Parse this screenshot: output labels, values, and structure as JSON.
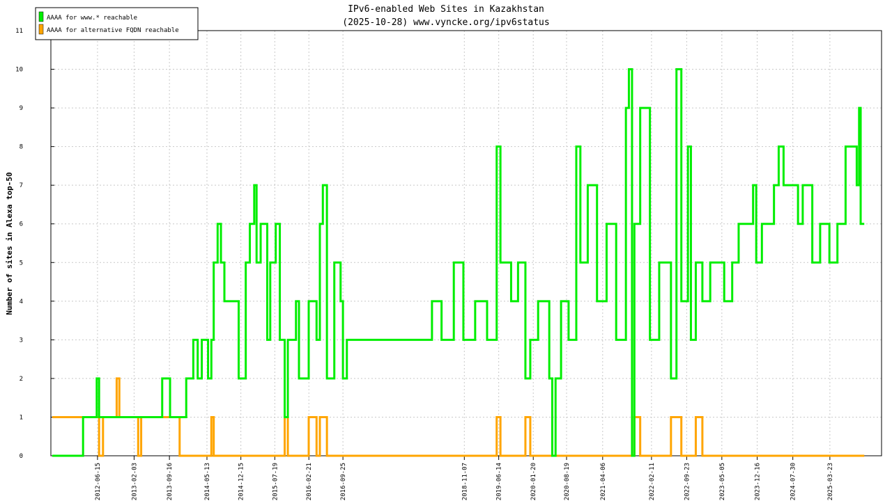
{
  "chart_data": {
    "type": "step",
    "title": "IPv6-enabled Web Sites in Kazakhstan",
    "subtitle": "(2025-10-28) www.vyncke.org/ipv6status",
    "y_label": "Number of sites in Alexa top-50",
    "xlim": [
      "2011-08-23",
      "2026-02-15"
    ],
    "xticks": [
      "2012-06-15",
      "2013-02-03",
      "2013-09-16",
      "2014-05-13",
      "2014-12-15",
      "2015-07-19",
      "2016-02-21",
      "2016-09-25",
      "2018-11-07",
      "2019-06-14",
      "2020-01-20",
      "2020-08-19",
      "2021-04-06",
      "2022-02-11",
      "2022-09-23",
      "2023-05-05",
      "2023-12-16",
      "2024-07-30",
      "2025-03-23"
    ],
    "ylim": [
      0,
      11
    ],
    "yticks": [
      0,
      1,
      2,
      3,
      4,
      5,
      6,
      7,
      8,
      9,
      10,
      11
    ],
    "grid": true,
    "legend": "top-left",
    "x": [
      "2011-09-01",
      "2012-03-15",
      "2012-06-10",
      "2012-06-25",
      "2012-07-20",
      "2012-10-15",
      "2012-11-01",
      "2013-03-01",
      "2013-03-20",
      "2013-05-01",
      "2013-08-01",
      "2013-09-20",
      "2013-11-20",
      "2014-01-01",
      "2014-02-15",
      "2014-03-15",
      "2014-04-10",
      "2014-05-20",
      "2014-06-10",
      "2014-06-25",
      "2014-07-20",
      "2014-08-10",
      "2014-09-01",
      "2014-12-01",
      "2015-01-15",
      "2015-02-10",
      "2015-03-10",
      "2015-03-25",
      "2015-04-20",
      "2015-06-01",
      "2015-06-20",
      "2015-07-25",
      "2015-08-20",
      "2015-09-20",
      "2015-10-10",
      "2015-12-01",
      "2015-12-20",
      "2016-02-20",
      "2016-04-10",
      "2016-05-01",
      "2016-05-20",
      "2016-06-15",
      "2016-08-01",
      "2016-09-10",
      "2016-09-25",
      "2016-10-20",
      "2018-04-15",
      "2018-06-15",
      "2018-09-01",
      "2018-11-01",
      "2019-01-15",
      "2019-04-01",
      "2019-06-01",
      "2019-06-25",
      "2019-09-01",
      "2019-10-15",
      "2019-12-01",
      "2020-01-01",
      "2020-02-20",
      "2020-05-01",
      "2020-05-20",
      "2020-06-10",
      "2020-07-15",
      "2020-09-01",
      "2020-10-20",
      "2020-11-15",
      "2021-01-01",
      "2021-03-01",
      "2021-05-01",
      "2021-07-01",
      "2021-09-01",
      "2021-09-20",
      "2021-10-10",
      "2021-10-25",
      "2021-12-01",
      "2022-02-01",
      "2022-04-01",
      "2022-06-15",
      "2022-07-20",
      "2022-08-20",
      "2022-10-01",
      "2022-10-20",
      "2022-11-20",
      "2023-01-01",
      "2023-02-20",
      "2023-05-20",
      "2023-07-10",
      "2023-08-20",
      "2023-11-20",
      "2023-12-10",
      "2024-01-15",
      "2024-04-01",
      "2024-05-01",
      "2024-06-01",
      "2024-09-01",
      "2024-10-01",
      "2024-12-01",
      "2025-01-20",
      "2025-03-20",
      "2025-05-10",
      "2025-07-01",
      "2025-09-10",
      "2025-09-25",
      "2025-10-05",
      "2025-10-28"
    ],
    "series": [
      {
        "name": "AAAA for www.* reachable",
        "color": "#00ee00",
        "values": [
          0,
          1,
          2,
          1,
          1,
          1,
          1,
          1,
          1,
          1,
          2,
          1,
          1,
          2,
          3,
          2,
          3,
          2,
          3,
          5,
          6,
          5,
          4,
          2,
          5,
          6,
          7,
          5,
          6,
          3,
          5,
          6,
          3,
          1,
          3,
          4,
          2,
          4,
          3,
          6,
          7,
          2,
          5,
          4,
          2,
          3,
          4,
          3,
          5,
          3,
          4,
          3,
          8,
          5,
          4,
          5,
          2,
          3,
          4,
          2,
          0,
          2,
          4,
          3,
          8,
          5,
          7,
          4,
          6,
          3,
          9,
          10,
          0,
          6,
          9,
          3,
          5,
          2,
          10,
          4,
          8,
          3,
          5,
          4,
          5,
          4,
          5,
          6,
          7,
          5,
          6,
          7,
          8,
          7,
          6,
          7,
          5,
          6,
          5,
          6,
          8,
          7,
          9,
          6,
          6
        ]
      },
      {
        "name": "AAAA for alternative FQDN reachable",
        "color": "#ffa500",
        "values": [
          1,
          1,
          1,
          0,
          1,
          2,
          1,
          0,
          1,
          1,
          1,
          1,
          0,
          0,
          0,
          0,
          0,
          0,
          1,
          0,
          0,
          0,
          0,
          0,
          0,
          0,
          0,
          0,
          0,
          0,
          0,
          0,
          0,
          1,
          0,
          0,
          0,
          1,
          0,
          1,
          1,
          0,
          0,
          0,
          0,
          0,
          0,
          0,
          0,
          0,
          0,
          0,
          1,
          0,
          0,
          0,
          1,
          0,
          0,
          0,
          0,
          0,
          0,
          0,
          0,
          0,
          0,
          0,
          0,
          0,
          0,
          0,
          0,
          1,
          0,
          0,
          0,
          1,
          1,
          0,
          0,
          0,
          1,
          0,
          0,
          0,
          0,
          0,
          0,
          0,
          0,
          0,
          0,
          0,
          0,
          0,
          0,
          0,
          0,
          0,
          0,
          0,
          0,
          0,
          0
        ]
      }
    ]
  }
}
